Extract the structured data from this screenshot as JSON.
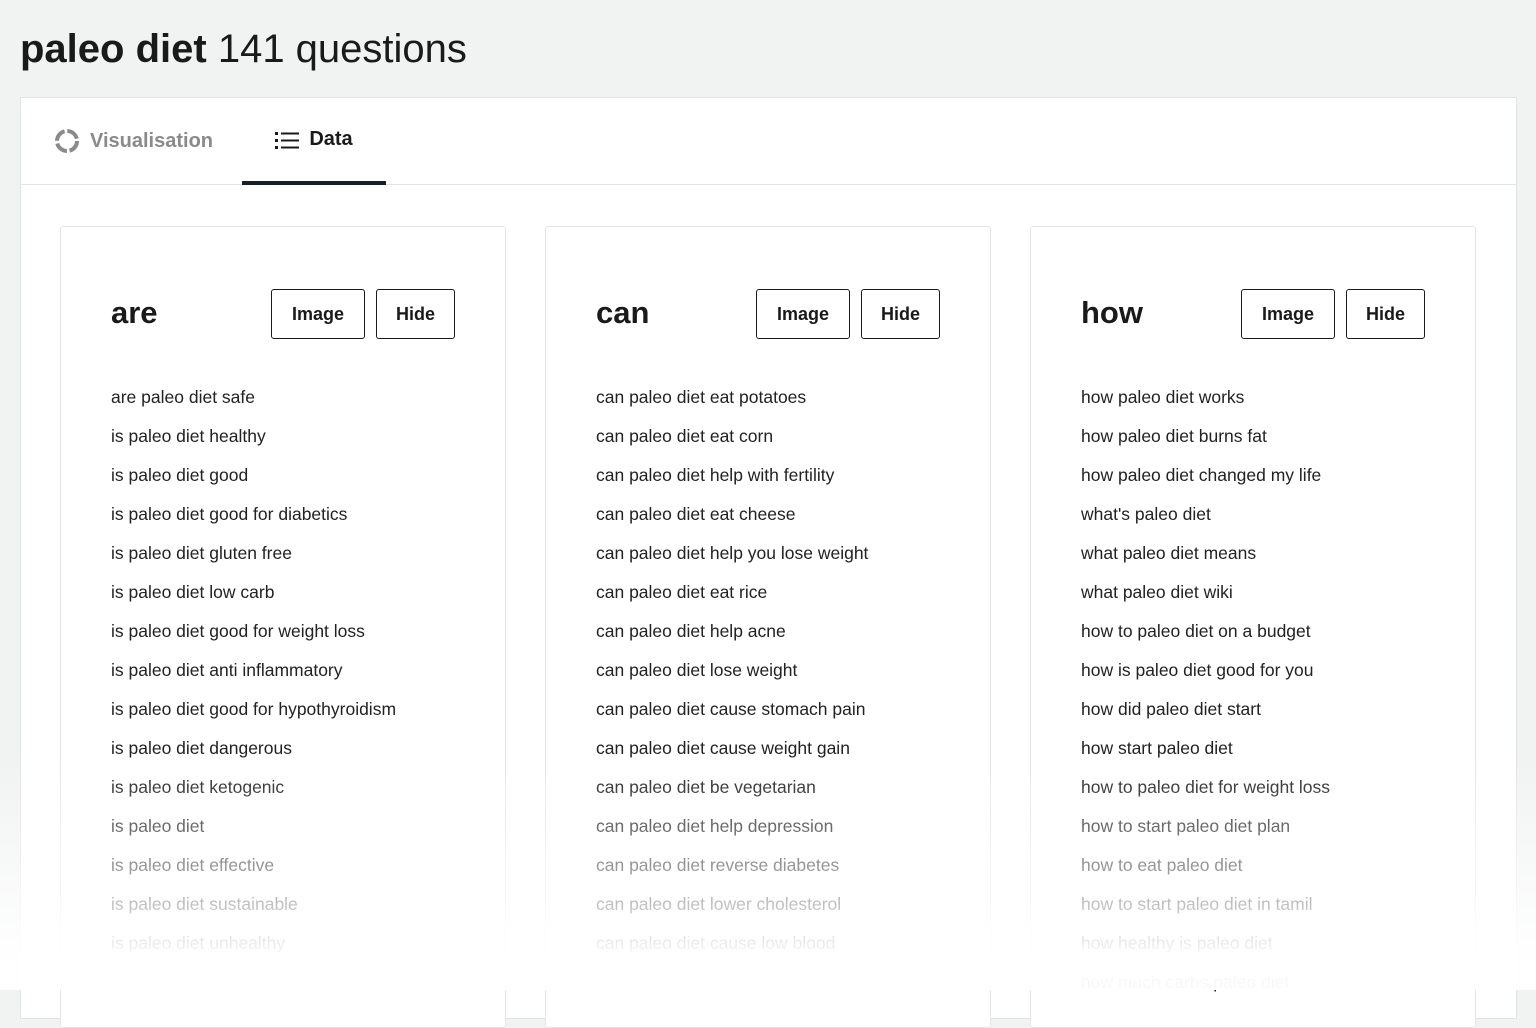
{
  "header": {
    "keyword": "paleo diet",
    "count_label": "141 questions"
  },
  "tabs": [
    {
      "label": "Visualisation",
      "icon": "circle-segments-icon",
      "active": false
    },
    {
      "label": "Data",
      "icon": "list-icon",
      "active": true
    }
  ],
  "cards": [
    {
      "heading": "are",
      "image_label": "Image",
      "hide_label": "Hide",
      "items": [
        "are paleo diet safe",
        "is paleo diet healthy",
        "is paleo diet good",
        "is paleo diet good for diabetics",
        "is paleo diet gluten free",
        "is paleo diet low carb",
        "is paleo diet good for weight loss",
        "is paleo diet anti inflammatory",
        "is paleo diet good for hypothyroidism",
        "is paleo diet dangerous",
        "is paleo diet ketogenic",
        "is paleo diet",
        "is paleo diet effective",
        "is paleo diet sustainable",
        "is paleo diet unhealthy"
      ]
    },
    {
      "heading": "can",
      "image_label": "Image",
      "hide_label": "Hide",
      "items": [
        "can paleo diet eat potatoes",
        "can paleo diet eat corn",
        "can paleo diet help with fertility",
        "can paleo diet eat cheese",
        "can paleo diet help you lose weight",
        "can paleo diet eat rice",
        "can paleo diet help acne",
        "can paleo diet lose weight",
        "can paleo diet cause stomach pain",
        "can paleo diet cause weight gain",
        "can paleo diet be vegetarian",
        "can paleo diet help depression",
        "can paleo diet reverse diabetes",
        "can paleo diet lower cholesterol",
        "can paleo diet cause low blood"
      ]
    },
    {
      "heading": "how",
      "image_label": "Image",
      "hide_label": "Hide",
      "items": [
        "how paleo diet works",
        "how paleo diet burns fat",
        "how paleo diet changed my life",
        "what's paleo diet",
        "what paleo diet means",
        "what paleo diet wiki",
        "how to paleo diet on a budget",
        "how is paleo diet good for you",
        "how did paleo diet start",
        "how start paleo diet",
        "how to paleo diet for weight loss",
        "how to start paleo diet plan",
        "how to eat paleo diet",
        "how to start paleo diet in tamil",
        "how healthy is paleo diet",
        "how much carbs paleo diet"
      ]
    }
  ]
}
